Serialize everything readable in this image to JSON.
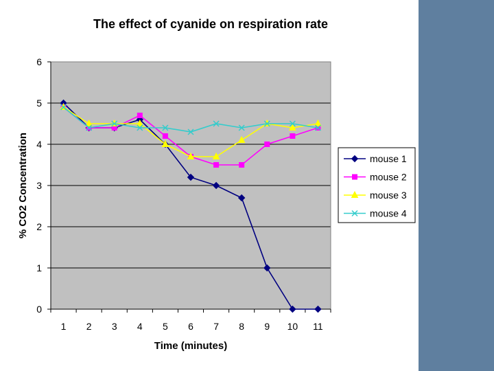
{
  "chart_data": {
    "type": "line",
    "title": "The effect of cyanide on respiration rate",
    "xlabel": "Time (minutes)",
    "ylabel": "% CO2 Concentration",
    "x": [
      1,
      2,
      3,
      4,
      5,
      6,
      7,
      8,
      9,
      10,
      11
    ],
    "x_tick_labels": [
      "1",
      "2",
      "3",
      "4",
      "5",
      "6",
      "7",
      "8",
      "9",
      "10",
      "11"
    ],
    "ylim": [
      0,
      6
    ],
    "y_tick_labels": [
      "0",
      "1",
      "2",
      "3",
      "4",
      "5",
      "6"
    ],
    "grid": true,
    "legend_position": "right",
    "series": [
      {
        "name": "mouse 1",
        "color": "#000080",
        "marker": "diamond",
        "values": [
          5.0,
          4.4,
          4.4,
          4.6,
          4.0,
          3.2,
          3.0,
          2.7,
          1.0,
          0.0,
          0.0
        ]
      },
      {
        "name": "mouse 2",
        "color": "#ff00ff",
        "marker": "square",
        "values": [
          4.9,
          4.4,
          4.4,
          4.7,
          4.2,
          3.7,
          3.5,
          3.5,
          4.0,
          4.2,
          4.4
        ]
      },
      {
        "name": "mouse 3",
        "color": "#ffff00",
        "marker": "triangle",
        "values": [
          4.9,
          4.5,
          4.5,
          4.5,
          4.0,
          3.7,
          3.7,
          4.1,
          4.5,
          4.4,
          4.5
        ]
      },
      {
        "name": "mouse 4",
        "color": "#33cccc",
        "marker": "x",
        "values": [
          4.9,
          4.4,
          4.5,
          4.4,
          4.4,
          4.3,
          4.5,
          4.4,
          4.5,
          4.5,
          4.4
        ]
      }
    ]
  },
  "colors": {
    "page_background": "#5f7f9f",
    "chart_background": "#ffffff",
    "plot_background": "#c0c0c0"
  }
}
